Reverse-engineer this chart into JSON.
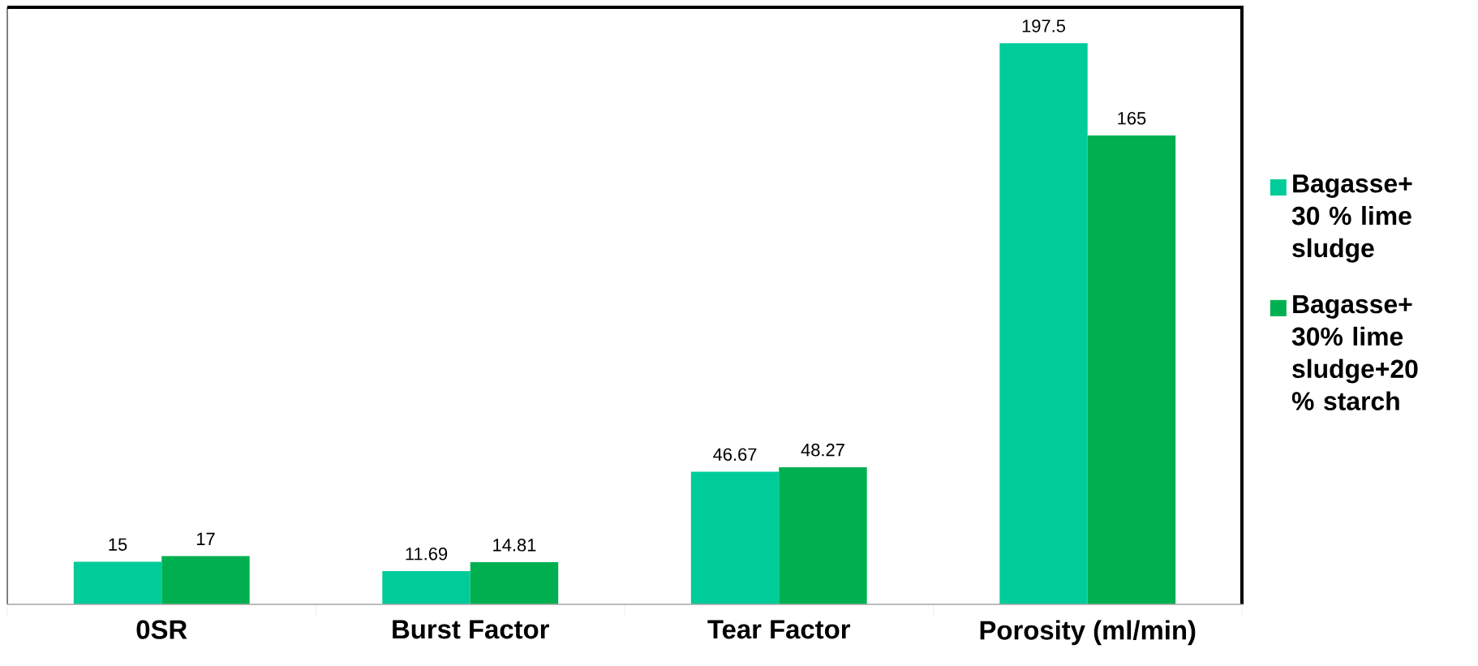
{
  "chart_data": {
    "type": "bar",
    "categories": [
      "0SR",
      "Burst Factor",
      "Tear Factor",
      "Porosity (ml/min)"
    ],
    "series": [
      {
        "name": "Bagasse+ 30 % lime sludge",
        "color": "#00cc99",
        "values": [
          15,
          11.69,
          46.67,
          197.5
        ]
      },
      {
        "name": "Bagasse+ 30% lime sludge+20 % starch",
        "color": "#00b050",
        "values": [
          17,
          14.81,
          48.27,
          165
        ]
      }
    ],
    "data_labels": true,
    "legend": "right"
  }
}
